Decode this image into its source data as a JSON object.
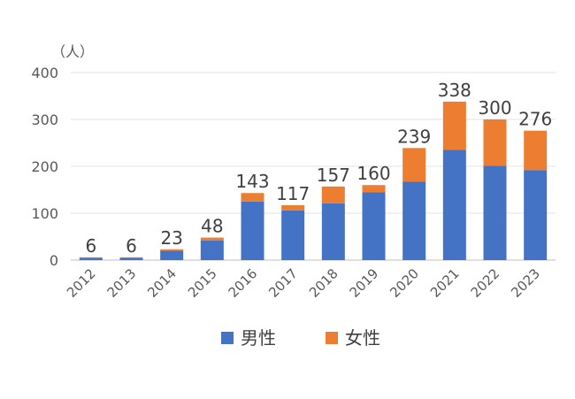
{
  "chart_data": {
    "type": "bar",
    "stacked": true,
    "unit_label": "（人）",
    "categories": [
      "2012",
      "2013",
      "2014",
      "2015",
      "2016",
      "2017",
      "2018",
      "2019",
      "2020",
      "2021",
      "2022",
      "2023"
    ],
    "series": [
      {
        "name": "男性",
        "color": "#4472C4",
        "values": [
          5,
          5,
          20,
          42,
          125,
          106,
          121,
          145,
          167,
          235,
          201,
          192
        ]
      },
      {
        "name": "女性",
        "color": "#ED7D31",
        "values": [
          1,
          1,
          3,
          6,
          18,
          11,
          36,
          15,
          72,
          103,
          99,
          84
        ]
      }
    ],
    "totals": [
      "6",
      "6",
      "23",
      "48",
      "143",
      "117",
      "157",
      "160",
      "239",
      "338",
      "300",
      "276"
    ],
    "ylim": [
      0,
      400
    ],
    "yticks": [
      "0",
      "100",
      "200",
      "300",
      "400"
    ],
    "grid": true,
    "legend_position": "bottom"
  }
}
